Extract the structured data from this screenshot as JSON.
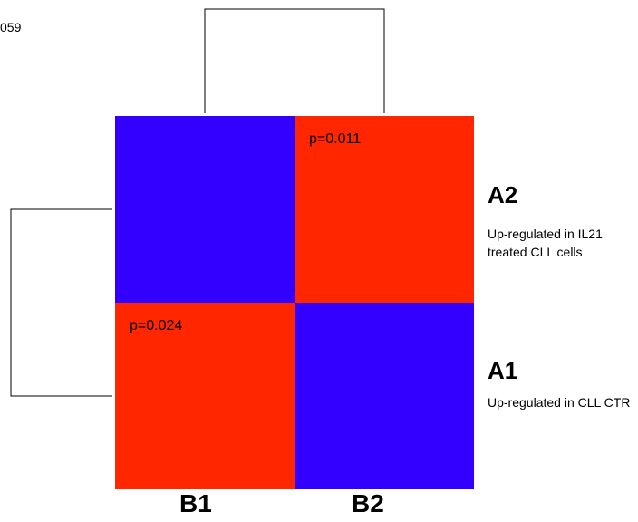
{
  "corner_text": "059",
  "chart_data": {
    "type": "heatmap",
    "columns": [
      "B1",
      "B2"
    ],
    "rows": [
      {
        "id": "A2",
        "description": "Up-regulated in IL21 treated CLL cells"
      },
      {
        "id": "A1",
        "description": "Up-regulated in CLL CTR"
      }
    ],
    "cells": [
      [
        {
          "state": "low",
          "label": ""
        },
        {
          "state": "high",
          "label": "p=0.011"
        }
      ],
      [
        {
          "state": "high",
          "label": "p=0.024"
        },
        {
          "state": "low",
          "label": ""
        }
      ]
    ],
    "colors": {
      "high": "#ff2600",
      "low": "#3300ff"
    },
    "dendrograms": {
      "rows": true,
      "columns": true
    }
  }
}
